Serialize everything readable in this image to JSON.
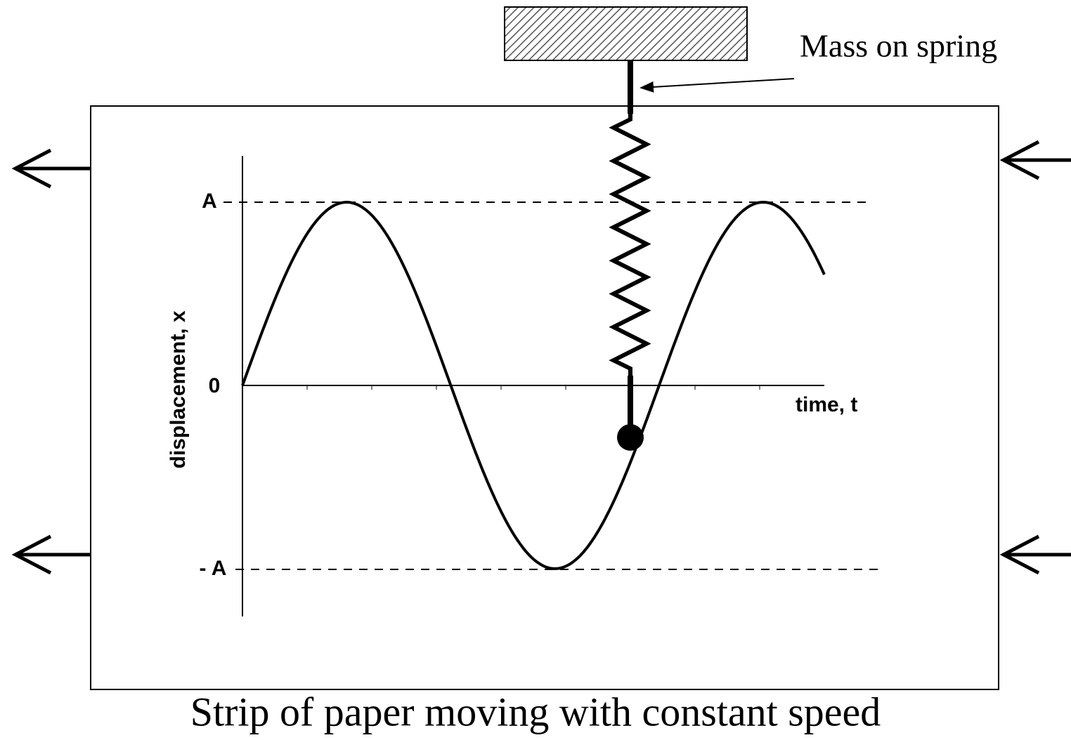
{
  "label": "Mass on spring",
  "axis": {
    "y_label": "displacement, x",
    "x_label": "time, t",
    "top": "A",
    "zero": "0",
    "bottom": "- A"
  },
  "caption": "Strip of paper moving with constant speed"
}
